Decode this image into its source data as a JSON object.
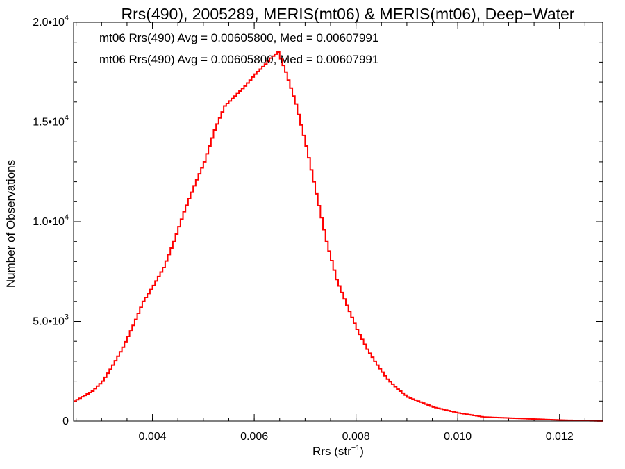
{
  "chart_data": {
    "type": "step",
    "title": "Rrs(490), 2005289, MERIS(mt06) & MERIS(mt06), Deep−Water",
    "xlabel": {
      "base": "Rrs (str",
      "sup": "−1",
      "tail": ")"
    },
    "ylabel": "Number of Observations",
    "xlim": [
      0.00245,
      0.01285
    ],
    "ylim": [
      0,
      20000
    ],
    "x_ticks": [
      {
        "value": 0.004,
        "label": "0.004"
      },
      {
        "value": 0.006,
        "label": "0.006"
      },
      {
        "value": 0.008,
        "label": "0.008"
      },
      {
        "value": 0.01,
        "label": "0.010"
      },
      {
        "value": 0.012,
        "label": "0.012"
      }
    ],
    "x_minor_step": 0.0005,
    "y_ticks": [
      {
        "value": 0,
        "label": "0",
        "sup": ""
      },
      {
        "value": 5000,
        "label": "5.0•10",
        "sup": "3"
      },
      {
        "value": 10000,
        "label": "1.0•10",
        "sup": "4"
      },
      {
        "value": 15000,
        "label": "1.5•10",
        "sup": "4"
      },
      {
        "value": 20000,
        "label": "2.0•10",
        "sup": "4"
      }
    ],
    "y_minor_step": 1000,
    "annotations": [
      {
        "text": "mt06 Rrs(490) Avg = 0.00605800, Med = 0.00607991",
        "color": "#000000"
      },
      {
        "text": "mt06 Rrs(490) Avg = 0.00605800, Med = 0.00607991",
        "color": "#ff0000"
      }
    ],
    "series": [
      {
        "color": "#ff0000",
        "step": true,
        "x": [
          0.00245,
          0.0028,
          0.003,
          0.0032,
          0.0034,
          0.0036,
          0.0038,
          0.004,
          0.0042,
          0.0044,
          0.0046,
          0.0048,
          0.005,
          0.0052,
          0.0054,
          0.0056,
          0.0058,
          0.006,
          0.0062,
          0.0063,
          0.00645,
          0.0066,
          0.0068,
          0.007,
          0.0072,
          0.0074,
          0.0076,
          0.0078,
          0.008,
          0.0082,
          0.0084,
          0.0086,
          0.0088,
          0.009,
          0.0095,
          0.01,
          0.0105,
          0.011,
          0.0115,
          0.012,
          0.0125,
          0.01285
        ],
        "y": [
          1000,
          1500,
          2000,
          2800,
          3700,
          4800,
          6000,
          6800,
          7700,
          9000,
          10500,
          11800,
          13000,
          14600,
          15800,
          16300,
          16800,
          17400,
          17900,
          18200,
          18500,
          17500,
          15900,
          13800,
          11400,
          9000,
          7100,
          5800,
          4600,
          3600,
          2800,
          2100,
          1600,
          1200,
          700,
          400,
          200,
          150,
          100,
          50,
          20,
          0
        ]
      }
    ]
  }
}
